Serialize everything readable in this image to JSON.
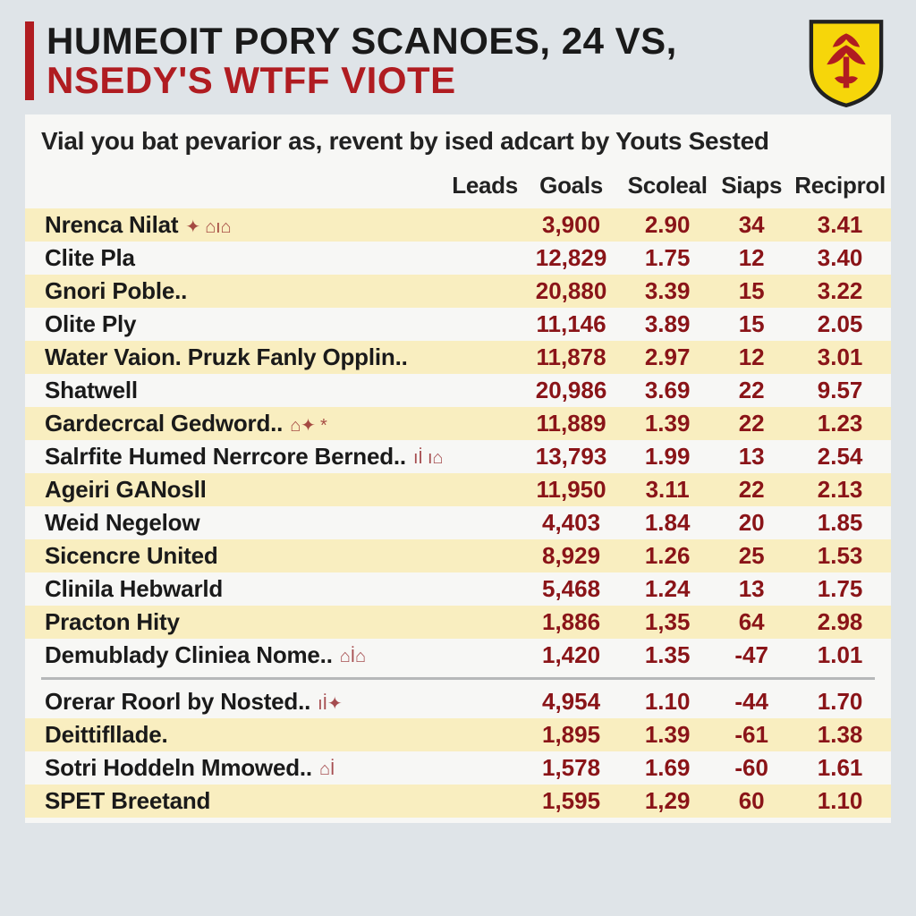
{
  "title": {
    "line1": "HUMEOIT PORY SCANOES, 24 VS,",
    "line2": "NSEDY'S WTFF VIOTE"
  },
  "subtitle": "Vial you bat pevarior as, revent by ised adcart by Youts Sested",
  "crest": {
    "shield_fill": "#f6d60a",
    "shield_stroke": "#212121",
    "symbol_fill": "#b01c21"
  },
  "columns": [
    "",
    "Leads",
    "Goals",
    "Scoleal",
    "Siaps",
    "Reciprol"
  ],
  "rows_top": [
    {
      "name": "Nrenca Nilat",
      "deco": "✦ ⌂ı⌂",
      "goals": "3,900",
      "scol": "2.90",
      "siaps": "34",
      "rec": "3.41",
      "hl": true
    },
    {
      "name": "Clite Pla",
      "deco": "",
      "goals": "12,829",
      "scol": "1.75",
      "siaps": "12",
      "rec": "3.40",
      "hl": false
    },
    {
      "name": "Gnori Poble..",
      "deco": "",
      "goals": "20,880",
      "scol": "3.39",
      "siaps": "15",
      "rec": "3.22",
      "hl": true
    },
    {
      "name": "Olite Ply",
      "deco": "",
      "goals": "11,146",
      "scol": "3.89",
      "siaps": "15",
      "rec": "2.05",
      "hl": false
    },
    {
      "name": "Water Vaion. Pruzk Fanly Opplin..",
      "deco": "",
      "goals": "11,878",
      "scol": "2.97",
      "siaps": "12",
      "rec": "3.01",
      "hl": true
    },
    {
      "name": "Shatwell",
      "deco": "",
      "goals": "20,986",
      "scol": "3.69",
      "siaps": "22",
      "rec": "9.57",
      "hl": false
    },
    {
      "name": "Gardecrcal Gedword..",
      "deco": "⌂✦ *",
      "goals": "11,889",
      "scol": "1.39",
      "siaps": "22",
      "rec": "1.23",
      "hl": true
    },
    {
      "name": "Salrfite Humed Nerrcore Berned..",
      "deco": "ıİ ı⌂",
      "goals": "13,793",
      "scol": "1.99",
      "siaps": "13",
      "rec": "2.54",
      "hl": false
    },
    {
      "name": "Ageiri GANosll",
      "deco": "",
      "goals": "11,950",
      "scol": "3.11",
      "siaps": "22",
      "rec": "2.13",
      "hl": true
    },
    {
      "name": "Weid Negelow",
      "deco": "",
      "goals": "4,403",
      "scol": "1.84",
      "siaps": "20",
      "rec": "1.85",
      "hl": false
    },
    {
      "name": "Sicencre United",
      "deco": "",
      "goals": "8,929",
      "scol": "1.26",
      "siaps": "25",
      "rec": "1.53",
      "hl": true
    },
    {
      "name": "Clinila Hebwarld",
      "deco": "",
      "goals": "5,468",
      "scol": "1.24",
      "siaps": "13",
      "rec": "1.75",
      "hl": false
    },
    {
      "name": "Practon Hity",
      "deco": "",
      "goals": "1,886",
      "scol": "1,35",
      "siaps": "64",
      "rec": "2.98",
      "hl": true
    },
    {
      "name": "Demublady Cliniea Nome..",
      "deco": "⌂İ⌂",
      "goals": "1,420",
      "scol": "1.35",
      "siaps": "-47",
      "rec": "1.01",
      "hl": false
    }
  ],
  "rows_bottom": [
    {
      "name": "Orerar Roorl by Nosted..",
      "deco": "ıİ✦",
      "goals": "4,954",
      "scol": "1.10",
      "siaps": "-44",
      "rec": "1.70",
      "hl": false
    },
    {
      "name": "Deittifllade.",
      "deco": "",
      "goals": "1,895",
      "scol": "1.39",
      "siaps": "-61",
      "rec": "1.38",
      "hl": true
    },
    {
      "name": "Sotri Hoddeln Mmowed..",
      "deco": "⌂İ",
      "goals": "1,578",
      "scol": "1.69",
      "siaps": "-60",
      "rec": "1.61",
      "hl": false
    },
    {
      "name": "SPET Breetand",
      "deco": "",
      "goals": "1,595",
      "scol": "1,29",
      "siaps": "60",
      "rec": "1.10",
      "hl": true
    }
  ],
  "style": {
    "bg": "#dfe4e8",
    "panel_bg": "#f7f7f5",
    "highlight_bg": "#f9eec0",
    "accent_red": "#b01c21",
    "data_red": "#8a1418",
    "text_dark": "#1a1a1a",
    "divider": "#b6b8b9",
    "title_fontsize": 42,
    "subtitle_fontsize": 28,
    "cell_fontsize": 26
  }
}
